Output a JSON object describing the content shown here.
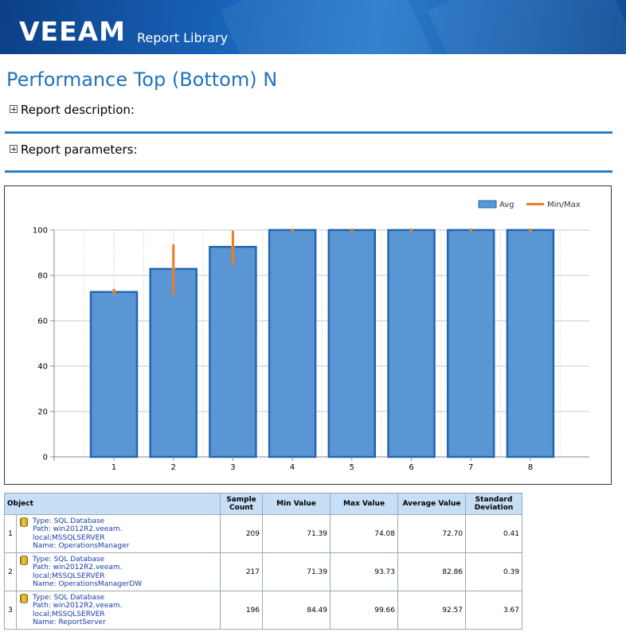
{
  "header": {
    "logo_text": "veeam",
    "product": "Report Library"
  },
  "page": {
    "title": "Performance Top (Bottom) N"
  },
  "sections": [
    {
      "label": "Report description:"
    },
    {
      "label": "Report parameters:"
    }
  ],
  "colors": {
    "accent": "#2480c8",
    "bar_fill": "#5b96d4",
    "bar_stroke": "#2166b0",
    "minmax": "#f07c1e",
    "table_header": "#c6def6"
  },
  "chart_data": {
    "type": "bar",
    "categories": [
      "1",
      "2",
      "3",
      "4",
      "5",
      "6",
      "7",
      "8"
    ],
    "series": [
      {
        "name": "Avg",
        "values": [
          72.7,
          82.86,
          92.57,
          100,
          100,
          100,
          100,
          100
        ]
      }
    ],
    "min_max": [
      [
        71.39,
        74.08
      ],
      [
        71.39,
        93.73
      ],
      [
        84.49,
        99.66
      ],
      [
        100,
        100
      ],
      [
        100,
        100
      ],
      [
        100,
        100
      ],
      [
        100,
        100
      ],
      [
        100,
        100
      ]
    ],
    "legend": [
      "Avg",
      "Min/Max"
    ],
    "legend_position": "top-right",
    "ylim": [
      0,
      100
    ],
    "yticks": [
      "0",
      "20",
      "40",
      "60",
      "80",
      "100"
    ],
    "grid": true
  },
  "table": {
    "columns": [
      "Object",
      "Sample Count",
      "Min Value",
      "Max Value",
      "Average Value",
      "Standard Deviation"
    ],
    "rows": [
      {
        "index": "1",
        "type": "Type: SQL Database",
        "path1": "Path: win2012R2.veeam.",
        "path2": "local;MSSQLSERVER",
        "name": "Name: OperationsManager",
        "sample_count": "209",
        "min": "71.39",
        "max": "74.08",
        "avg": "72.70",
        "std": "0.41"
      },
      {
        "index": "2",
        "type": "Type: SQL Database",
        "path1": "Path: win2012R2.veeam.",
        "path2": "local;MSSQLSERVER",
        "name": "Name: OperationsManagerDW",
        "sample_count": "217",
        "min": "71.39",
        "max": "93.73",
        "avg": "82.86",
        "std": "0.39"
      },
      {
        "index": "3",
        "type": "Type: SQL Database",
        "path1": "Path: win2012R2.veeam.",
        "path2": "local;MSSQLSERVER",
        "name": "Name: ReportServer",
        "sample_count": "196",
        "min": "84.49",
        "max": "99.66",
        "avg": "92.57",
        "std": "3.67"
      }
    ]
  }
}
